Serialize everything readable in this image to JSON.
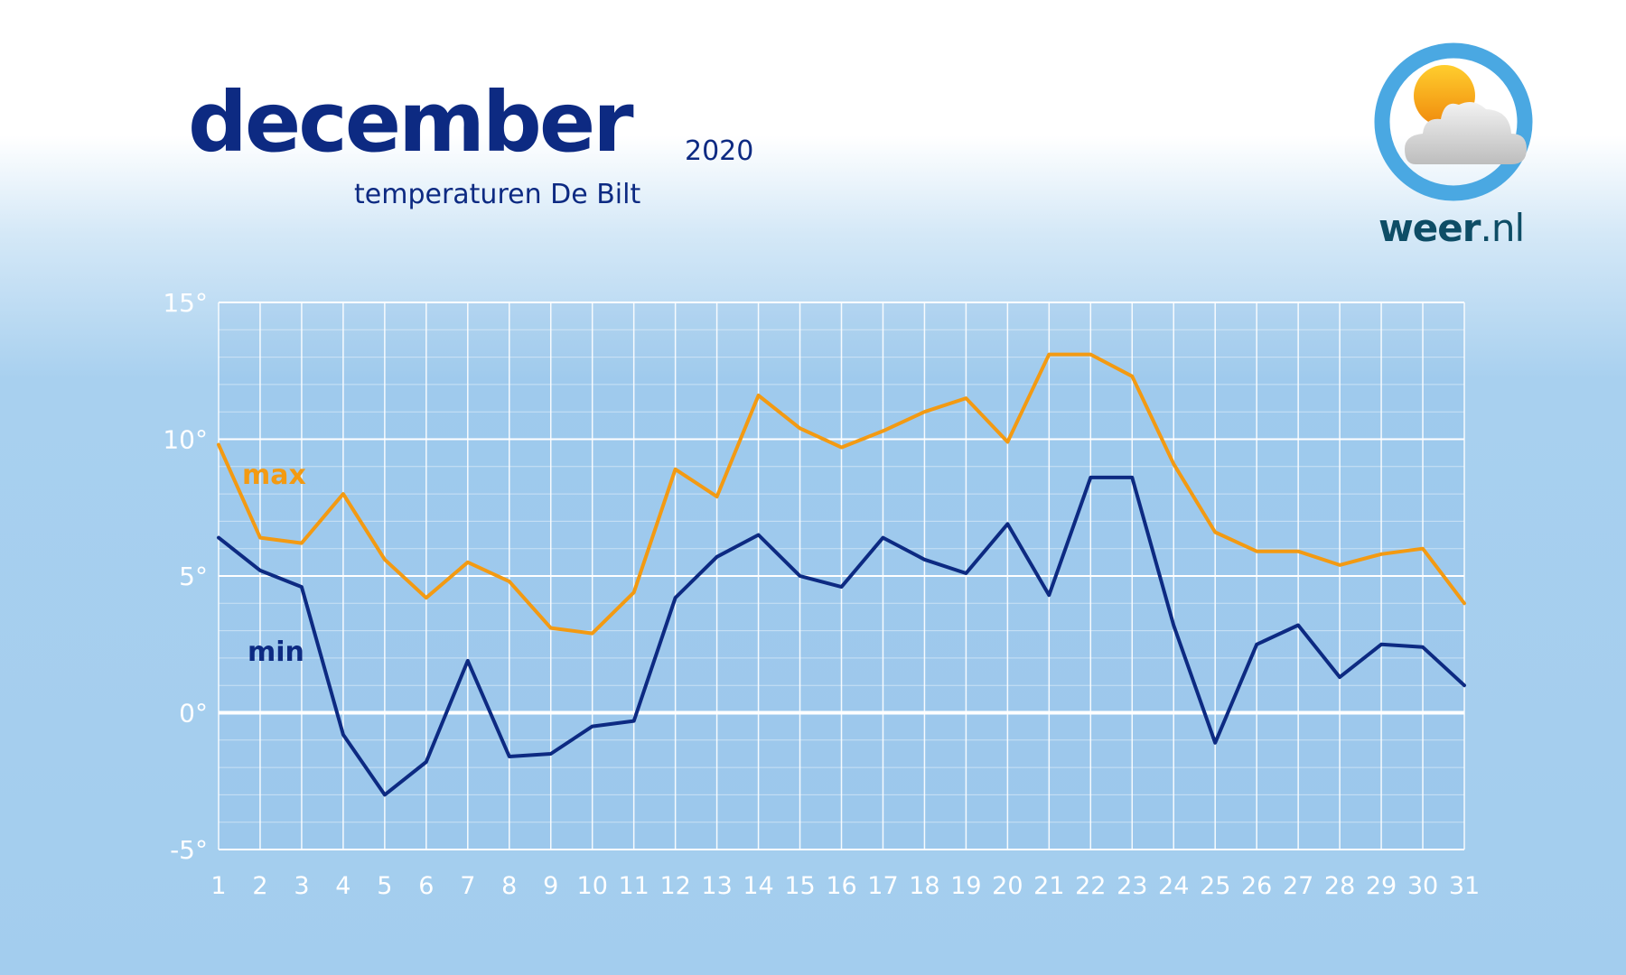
{
  "header": {
    "title": "december",
    "year": "2020",
    "subtitle": "temperaturen De Bilt"
  },
  "logo": {
    "brand_bold": "weer",
    "brand_suffix": ".nl",
    "icon": "sun-behind-cloud-icon"
  },
  "colors": {
    "title": "#0d2a82",
    "max_line": "#f39a12",
    "min_line": "#0d2a82",
    "grid": "#ffffff",
    "logo_ring": "#4aa8e2",
    "brand": "#0e4d66"
  },
  "chart_data": {
    "type": "line",
    "x": [
      1,
      2,
      3,
      4,
      5,
      6,
      7,
      8,
      9,
      10,
      11,
      12,
      13,
      14,
      15,
      16,
      17,
      18,
      19,
      20,
      21,
      22,
      23,
      24,
      25,
      26,
      27,
      28,
      29,
      30,
      31
    ],
    "x_tick_labels": [
      "1",
      "2",
      "3",
      "4",
      "5",
      "6",
      "7",
      "8",
      "9",
      "10",
      "11",
      "12",
      "13",
      "14",
      "15",
      "16",
      "17",
      "18",
      "19",
      "20",
      "21",
      "22",
      "23",
      "24",
      "25",
      "26",
      "27",
      "28",
      "29",
      "30",
      "31"
    ],
    "y_ticks": [
      15,
      10,
      5,
      0,
      -5
    ],
    "y_tick_labels": [
      "15°",
      "10°",
      "5°",
      "0°",
      "-5°"
    ],
    "ylim": [
      -5,
      15
    ],
    "xlim": [
      1,
      31
    ],
    "grid": true,
    "series": [
      {
        "name": "max",
        "color": "#f39a12",
        "values": [
          9.8,
          6.4,
          6.2,
          8.0,
          5.6,
          4.2,
          5.5,
          4.8,
          3.1,
          2.9,
          4.4,
          8.9,
          7.9,
          11.6,
          10.4,
          9.7,
          10.3,
          11.0,
          11.5,
          9.9,
          13.1,
          13.1,
          12.3,
          9.1,
          6.6,
          5.9,
          5.9,
          5.4,
          5.8,
          6.0,
          4.0
        ]
      },
      {
        "name": "min",
        "color": "#0d2a82",
        "values": [
          6.4,
          5.2,
          4.6,
          -0.8,
          -3.0,
          -1.8,
          1.9,
          -1.6,
          -1.5,
          -0.5,
          -0.3,
          4.2,
          5.7,
          6.5,
          5.0,
          4.6,
          6.4,
          5.6,
          5.1,
          6.9,
          4.3,
          8.6,
          8.6,
          3.2,
          -1.1,
          2.5,
          3.2,
          1.3,
          2.5,
          2.4,
          1.0
        ]
      }
    ]
  }
}
